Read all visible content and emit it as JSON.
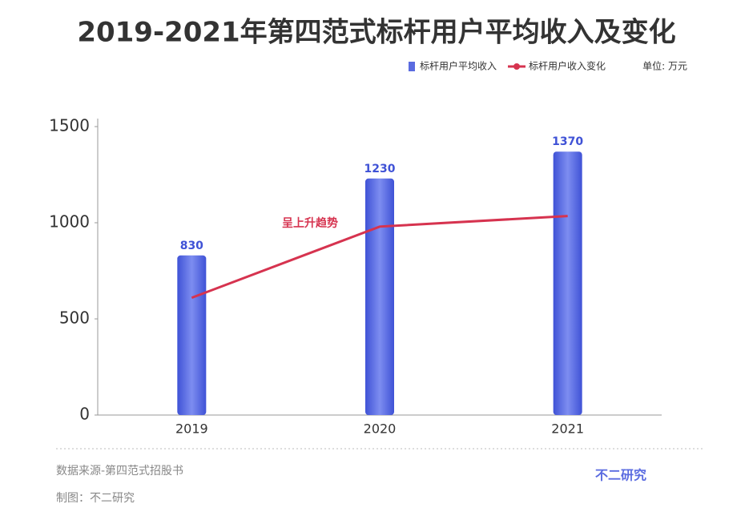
{
  "chart_data": {
    "type": "bar",
    "title": "2019-2021年第四范式标杆用户平均收入及变化",
    "unit": "单位: 万元",
    "categories": [
      "2019",
      "2020",
      "2021"
    ],
    "series": [
      {
        "name": "标杆用户平均收入",
        "type": "bar",
        "color": "#5a6be0",
        "values": [
          830,
          1230,
          1370
        ]
      },
      {
        "name": "标杆用户收入变化",
        "type": "line",
        "color": "#d6334f",
        "values": [
          610,
          980,
          1035
        ]
      }
    ],
    "annotation": "呈上升趋势",
    "ylim": [
      0,
      1500
    ],
    "yticks": [
      0,
      500,
      1000,
      1500
    ],
    "grid": false,
    "legend": "top-right",
    "source": "数据来源-第四范式招股书",
    "credit": "制图：不二研究",
    "watermark": "不二研究"
  }
}
